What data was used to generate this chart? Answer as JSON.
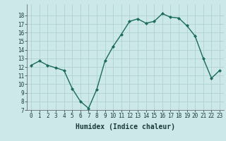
{
  "x": [
    0,
    1,
    2,
    3,
    4,
    5,
    6,
    7,
    8,
    9,
    10,
    11,
    12,
    13,
    14,
    15,
    16,
    17,
    18,
    19,
    20,
    21,
    22,
    23
  ],
  "y": [
    12.2,
    12.7,
    12.2,
    11.9,
    11.6,
    9.5,
    8.0,
    7.2,
    9.4,
    12.7,
    14.4,
    15.8,
    17.3,
    17.6,
    17.1,
    17.3,
    18.2,
    17.8,
    17.7,
    16.8,
    15.6,
    13.0,
    10.7,
    11.6
  ],
  "line_color": "#1a6b5a",
  "marker": "D",
  "marker_size": 2,
  "bg_color": "#cce8e8",
  "grid_color": "#aacece",
  "xlabel": "Humidex (Indice chaleur)",
  "ylim": [
    7,
    19
  ],
  "xlim_min": -0.5,
  "xlim_max": 23.5,
  "yticks": [
    7,
    8,
    9,
    10,
    11,
    12,
    13,
    14,
    15,
    16,
    17,
    18
  ],
  "xticks": [
    0,
    1,
    2,
    3,
    4,
    5,
    6,
    7,
    8,
    9,
    10,
    11,
    12,
    13,
    14,
    15,
    16,
    17,
    18,
    19,
    20,
    21,
    22,
    23
  ],
  "tick_fontsize": 5.5,
  "xlabel_fontsize": 7,
  "linewidth": 1.0
}
